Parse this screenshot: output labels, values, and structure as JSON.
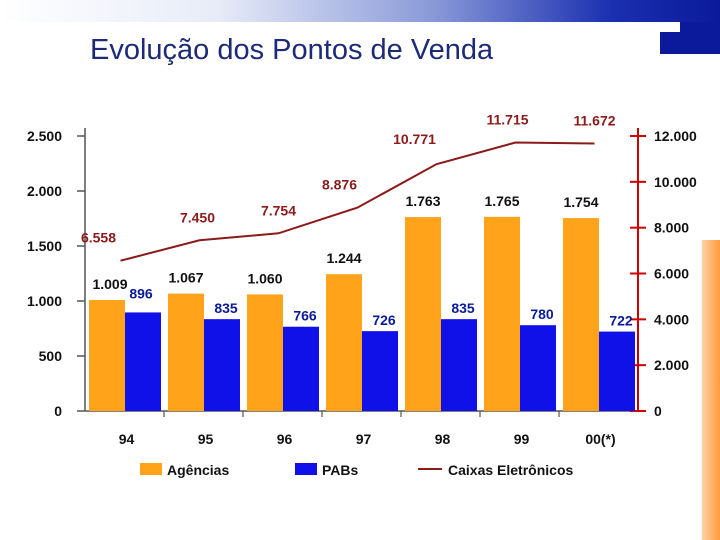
{
  "slide": {
    "title": "Evolução dos Pontos de Venda"
  },
  "colors": {
    "agencias": "#ffa31a",
    "pabs": "#1010e8",
    "caixas": "#8b1a1a",
    "right_axis": "#cc0000"
  },
  "chart_data": {
    "type": "bar",
    "categories": [
      "94",
      "95",
      "96",
      "97",
      "98",
      "99",
      "00(*)"
    ],
    "series": [
      {
        "name": "Agências",
        "type": "bar",
        "axis": "left",
        "values": [
          1009,
          1067,
          1060,
          1244,
          1763,
          1765,
          1754
        ],
        "labels": [
          "1.009",
          "1.067",
          "1.060",
          "1.244",
          "1.763",
          "1.765",
          "1.754"
        ]
      },
      {
        "name": "PABs",
        "type": "bar",
        "axis": "left",
        "values": [
          896,
          835,
          766,
          726,
          835,
          780,
          722
        ],
        "labels": [
          "896",
          "835",
          "766",
          "726",
          "835",
          "780",
          "722"
        ]
      },
      {
        "name": "Caixas Eletrônicos",
        "type": "line",
        "axis": "right",
        "values": [
          6558,
          7450,
          7754,
          8876,
          10771,
          11715,
          11672
        ],
        "labels": [
          "6.558",
          "7.450",
          "7.754",
          "8.876",
          "10.771",
          "11.715",
          "11.672"
        ]
      }
    ],
    "left_axis": {
      "ylim": [
        0,
        2500
      ],
      "ticks": [
        0,
        500,
        1000,
        1500,
        2000,
        2500
      ],
      "tick_labels": [
        "0",
        "500",
        "1.000",
        "1.500",
        "2.000",
        "2.500"
      ]
    },
    "right_axis": {
      "ylim": [
        0,
        12000
      ],
      "ticks": [
        0,
        2000,
        4000,
        6000,
        8000,
        10000,
        12000
      ],
      "tick_labels": [
        "0",
        "2.000",
        "4.000",
        "6.000",
        "8.000",
        "10.000",
        "12.000"
      ]
    },
    "legend": {
      "position": "bottom",
      "items": [
        "Agências",
        "PABs",
        "Caixas Eletrônicos"
      ]
    },
    "grid": false
  }
}
